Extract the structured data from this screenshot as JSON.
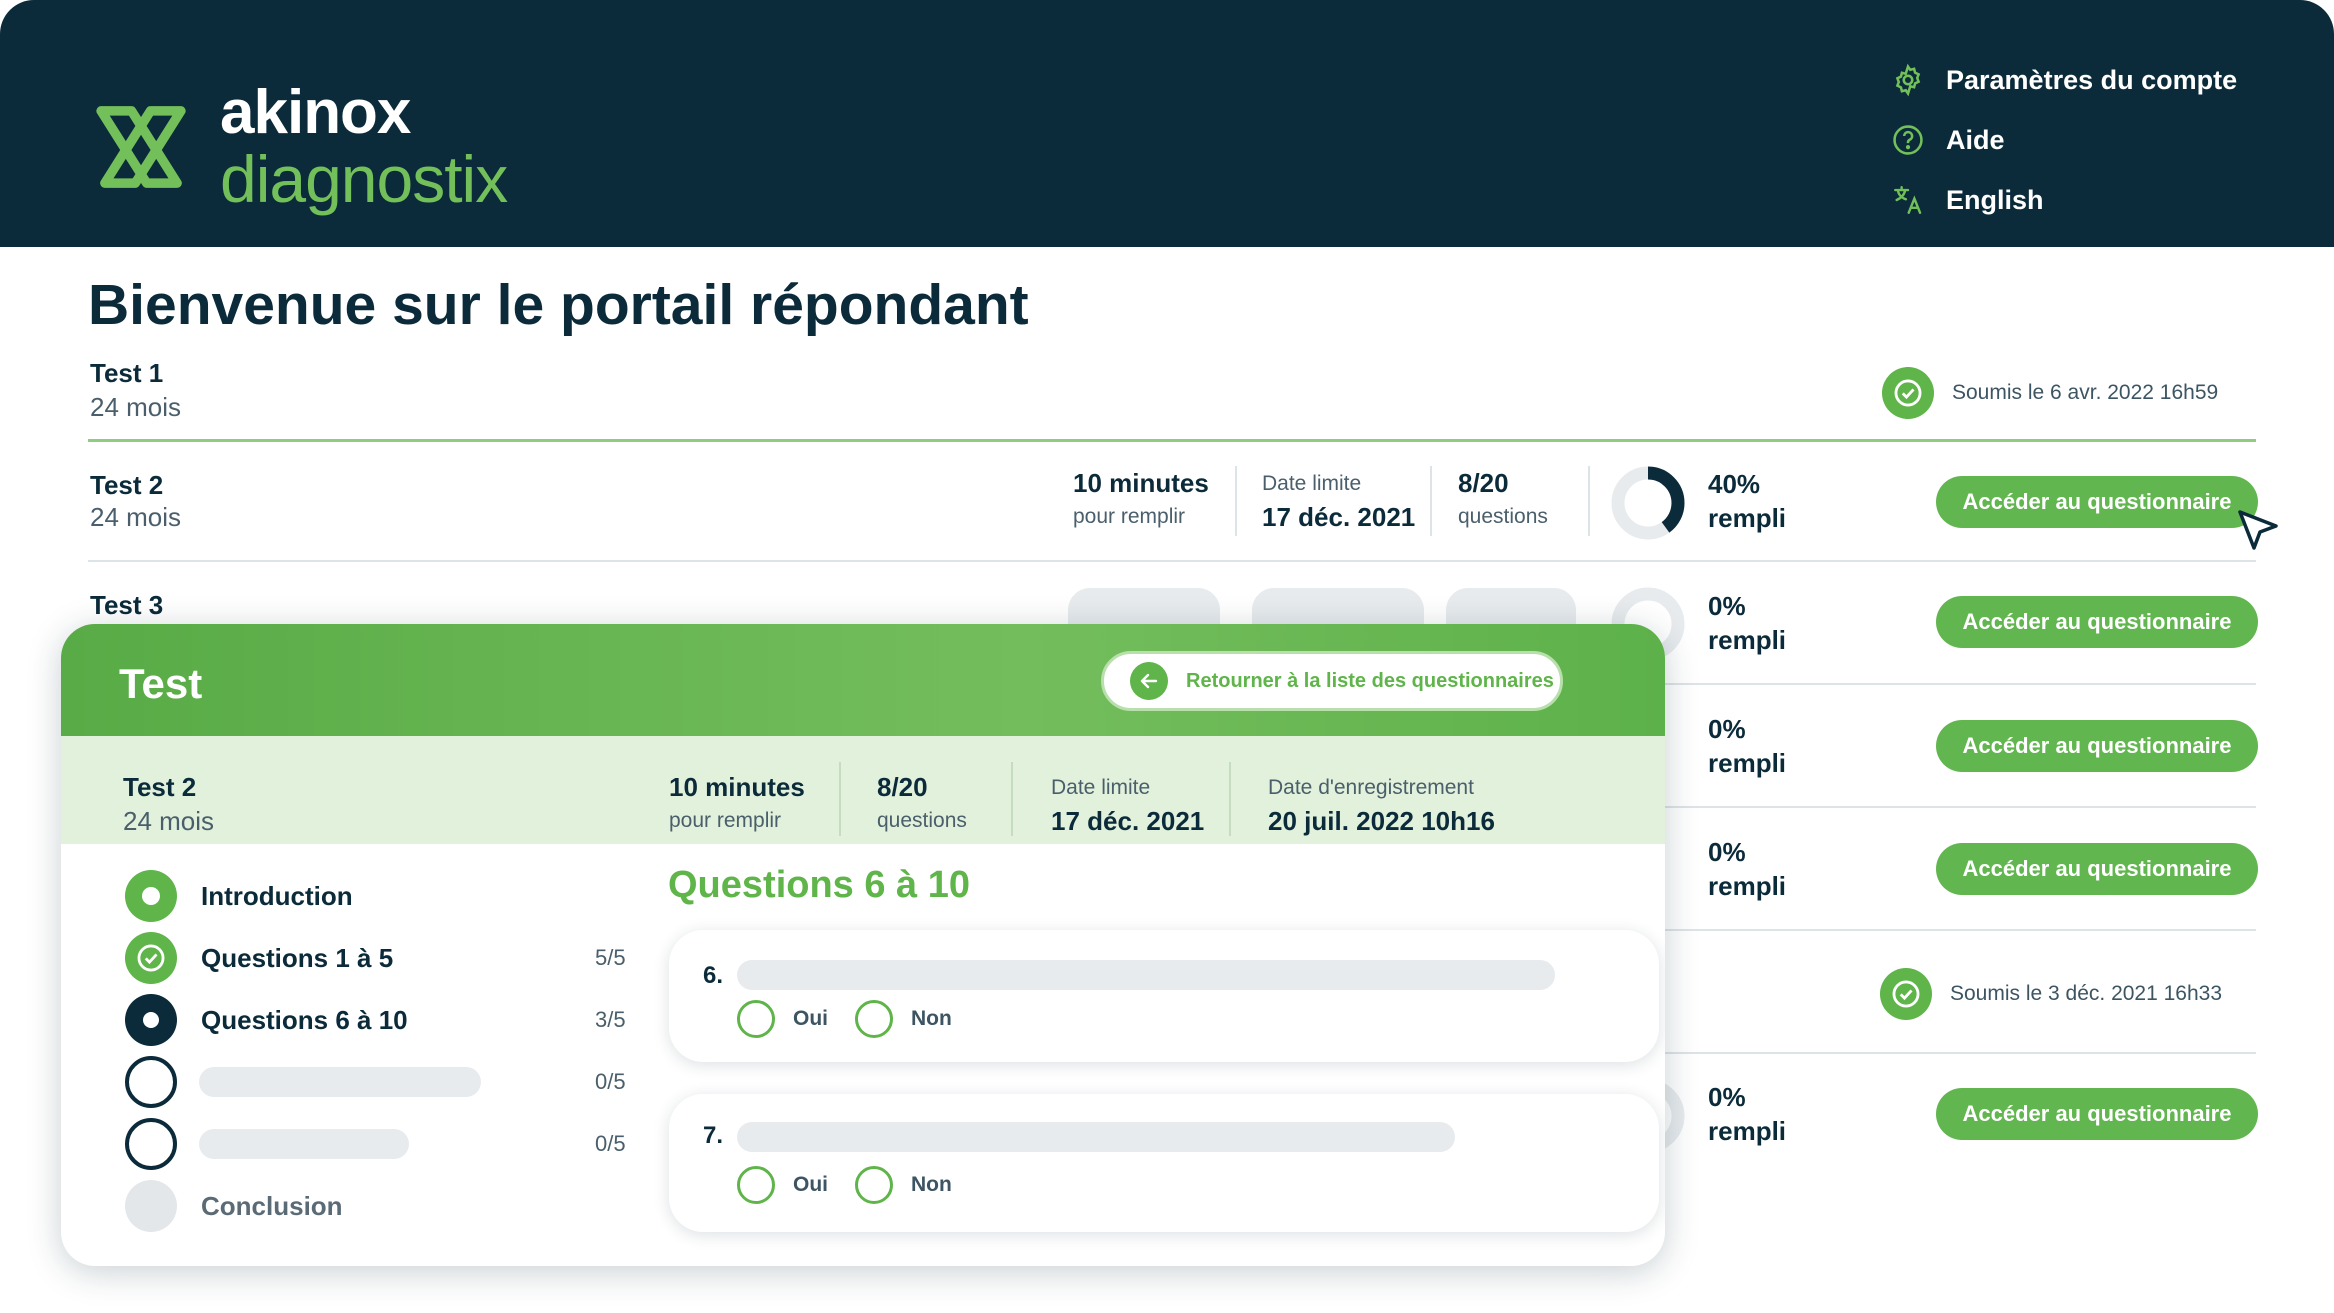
{
  "header": {
    "brand_top": "akinox",
    "brand_bottom": "diagnostix",
    "menu": [
      {
        "label": "Paramètres du compte",
        "icon": "gear-icon"
      },
      {
        "label": "Aide",
        "icon": "help-icon"
      },
      {
        "label": "English",
        "icon": "translate-icon"
      }
    ]
  },
  "page": {
    "title": "Bienvenue sur le portail répondant"
  },
  "rows": {
    "test1": {
      "name": "Test 1",
      "age": "24 mois",
      "submitted": "Soumis le 6 avr. 2022  16h59"
    },
    "test2": {
      "name": "Test 2",
      "age": "24 mois",
      "duration": "10 minutes",
      "duration_label": "pour remplir",
      "deadline_label": "Date limite",
      "deadline": "17 déc. 2021",
      "questions": "8/20",
      "questions_label": "questions",
      "progress_pct": "40%",
      "progress_label": "rempli",
      "progress_value": 0.4,
      "button": "Accéder au questionnaire"
    },
    "test3": {
      "name": "Test 3",
      "progress_pct": "0%",
      "progress_label": "rempli",
      "button": "Accéder au questionnaire"
    },
    "row4": {
      "progress_pct": "0%",
      "progress_label": "rempli",
      "button": "Accéder au questionnaire"
    },
    "row5": {
      "progress_pct": "0%",
      "progress_label": "rempli",
      "button": "Accéder au questionnaire"
    },
    "row6": {
      "submitted": "Soumis le 3 déc. 2021  16h33"
    },
    "row7": {
      "progress_pct": "0%",
      "progress_label": "rempli",
      "button": "Accéder au questionnaire"
    }
  },
  "modal": {
    "title": "Test",
    "back_button": "Retourner à la liste des questionnaires",
    "info": {
      "name": "Test 2",
      "age": "24 mois",
      "duration": "10 minutes",
      "duration_label": "pour remplir",
      "questions": "8/20",
      "questions_label": "questions",
      "deadline_label": "Date limite",
      "deadline": "17 déc. 2021",
      "saved_label": "Date d'enregistrement",
      "saved": "20 juil. 2022  10h16"
    },
    "steps": [
      {
        "label": "Introduction",
        "count": "",
        "status": "current-done"
      },
      {
        "label": "Questions 1 à 5",
        "count": "5/5",
        "status": "done"
      },
      {
        "label": "Questions 6 à 10",
        "count": "3/5",
        "status": "active"
      },
      {
        "label": "",
        "count": "0/5",
        "status": "todo"
      },
      {
        "label": "",
        "count": "0/5",
        "status": "todo"
      },
      {
        "label": "Conclusion",
        "count": "",
        "status": "disabled"
      }
    ],
    "section_title": "Questions 6 à 10",
    "questions": [
      {
        "number": "6.",
        "yes": "Oui",
        "no": "Non"
      },
      {
        "number": "7.",
        "yes": "Oui",
        "no": "Non"
      }
    ]
  },
  "colors": {
    "navy": "#0b2a3a",
    "green": "#5fb44a",
    "light_green": "#e2f1db"
  }
}
